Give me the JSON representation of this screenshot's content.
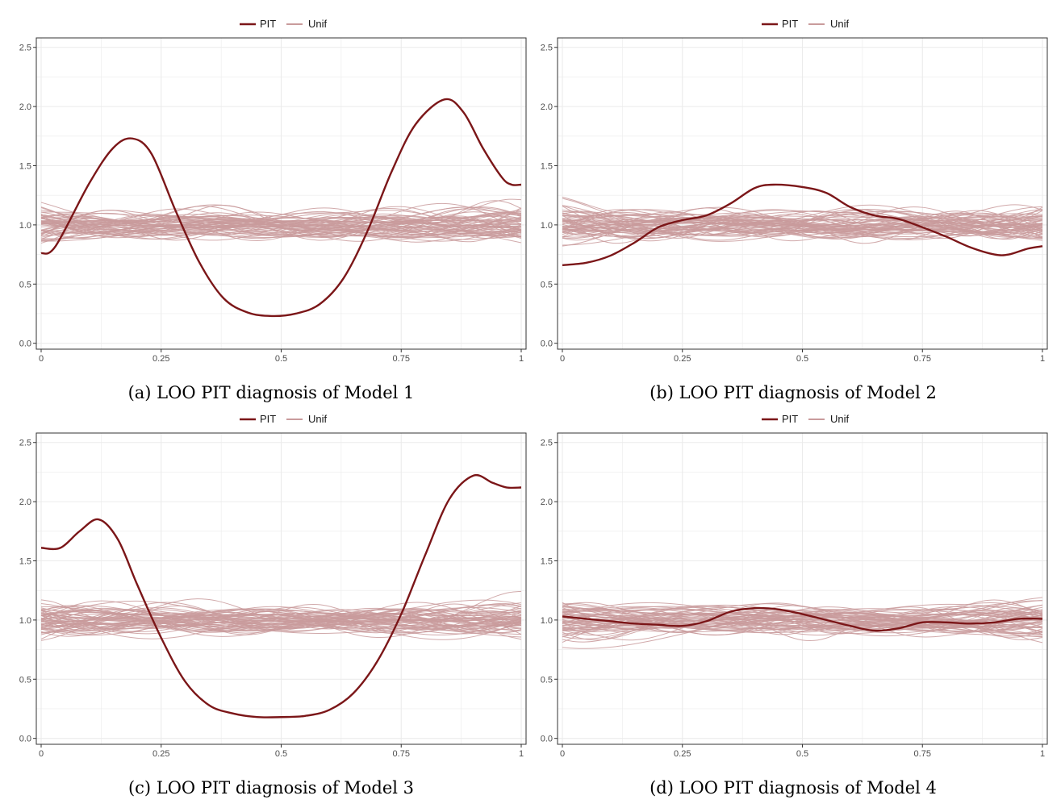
{
  "colors": {
    "pit": "#7b1618",
    "unif": "#c99b9c",
    "grid": "#ebebeb",
    "border": "#333333"
  },
  "chart_data": [
    {
      "type": "line",
      "caption": "(a) LOO PIT diagnosis of Model 1",
      "legend": [
        "PIT",
        "Unif"
      ],
      "legend_position": "top",
      "grid": true,
      "xlim": [
        0,
        1
      ],
      "ylim": [
        -0.05,
        2.58
      ],
      "x_ticks": [
        0,
        0.25,
        0.5,
        0.75,
        1
      ],
      "x_tick_labels": [
        "0",
        "0.25",
        "0.5",
        "0.75",
        "1"
      ],
      "y_ticks": [
        0,
        0.5,
        1,
        1.5,
        2,
        2.5
      ],
      "y_tick_labels": [
        "0.0",
        "0.5",
        "1.0",
        "1.5",
        "2.0",
        "2.5"
      ],
      "unif_curves": 60,
      "unif_seed": 11,
      "series": [
        {
          "name": "PIT",
          "x": [
            0,
            0.03,
            0.1,
            0.15,
            0.19,
            0.23,
            0.28,
            0.33,
            0.38,
            0.43,
            0.48,
            0.53,
            0.58,
            0.63,
            0.68,
            0.73,
            0.78,
            0.84,
            0.88,
            0.92,
            0.96,
            0.98,
            1.0
          ],
          "y": [
            0.76,
            0.82,
            1.35,
            1.65,
            1.73,
            1.6,
            1.12,
            0.68,
            0.38,
            0.26,
            0.23,
            0.25,
            0.33,
            0.55,
            0.95,
            1.45,
            1.85,
            2.06,
            1.95,
            1.65,
            1.4,
            1.34,
            1.34
          ]
        }
      ]
    },
    {
      "type": "line",
      "caption": "(b) LOO PIT diagnosis of Model 2",
      "legend": [
        "PIT",
        "Unif"
      ],
      "legend_position": "top",
      "grid": true,
      "xlim": [
        0,
        1
      ],
      "ylim": [
        -0.05,
        2.58
      ],
      "x_ticks": [
        0,
        0.25,
        0.5,
        0.75,
        1
      ],
      "x_tick_labels": [
        "0",
        "0.25",
        "0.5",
        "0.75",
        "1"
      ],
      "y_ticks": [
        0,
        0.5,
        1,
        1.5,
        2,
        2.5
      ],
      "y_tick_labels": [
        "0.0",
        "0.5",
        "1.0",
        "1.5",
        "2.0",
        "2.5"
      ],
      "unif_curves": 60,
      "unif_seed": 29,
      "series": [
        {
          "name": "PIT",
          "x": [
            0,
            0.05,
            0.1,
            0.15,
            0.2,
            0.25,
            0.3,
            0.35,
            0.4,
            0.44,
            0.5,
            0.55,
            0.6,
            0.65,
            0.7,
            0.75,
            0.8,
            0.85,
            0.9,
            0.93,
            0.97,
            1.0
          ],
          "y": [
            0.66,
            0.68,
            0.74,
            0.85,
            0.98,
            1.04,
            1.08,
            1.18,
            1.31,
            1.34,
            1.32,
            1.27,
            1.15,
            1.08,
            1.05,
            0.98,
            0.9,
            0.81,
            0.75,
            0.75,
            0.8,
            0.82
          ]
        }
      ]
    },
    {
      "type": "line",
      "caption": "(c) LOO PIT diagnosis of Model 3",
      "legend": [
        "PIT",
        "Unif"
      ],
      "legend_position": "top",
      "grid": true,
      "xlim": [
        0,
        1
      ],
      "ylim": [
        -0.05,
        2.58
      ],
      "x_ticks": [
        0,
        0.25,
        0.5,
        0.75,
        1
      ],
      "x_tick_labels": [
        "0",
        "0.25",
        "0.5",
        "0.75",
        "1"
      ],
      "y_ticks": [
        0,
        0.5,
        1,
        1.5,
        2,
        2.5
      ],
      "y_tick_labels": [
        "0.0",
        "0.5",
        "1.0",
        "1.5",
        "2.0",
        "2.5"
      ],
      "unif_curves": 60,
      "unif_seed": 47,
      "series": [
        {
          "name": "PIT",
          "x": [
            0,
            0.04,
            0.08,
            0.12,
            0.16,
            0.2,
            0.25,
            0.3,
            0.35,
            0.4,
            0.45,
            0.5,
            0.55,
            0.6,
            0.65,
            0.7,
            0.75,
            0.8,
            0.85,
            0.9,
            0.94,
            0.97,
            1.0
          ],
          "y": [
            1.61,
            1.61,
            1.75,
            1.85,
            1.68,
            1.3,
            0.85,
            0.48,
            0.28,
            0.21,
            0.18,
            0.18,
            0.19,
            0.24,
            0.38,
            0.65,
            1.05,
            1.55,
            2.02,
            2.22,
            2.16,
            2.12,
            2.12
          ]
        }
      ]
    },
    {
      "type": "line",
      "caption": "(d) LOO PIT diagnosis of Model 4",
      "legend": [
        "PIT",
        "Unif"
      ],
      "legend_position": "top",
      "grid": true,
      "xlim": [
        0,
        1
      ],
      "ylim": [
        -0.05,
        2.58
      ],
      "x_ticks": [
        0,
        0.25,
        0.5,
        0.75,
        1
      ],
      "x_tick_labels": [
        "0",
        "0.25",
        "0.5",
        "0.75",
        "1"
      ],
      "y_ticks": [
        0,
        0.5,
        1,
        1.5,
        2,
        2.5
      ],
      "y_tick_labels": [
        "0.0",
        "0.5",
        "1.0",
        "1.5",
        "2.0",
        "2.5"
      ],
      "unif_curves": 60,
      "unif_seed": 83,
      "series": [
        {
          "name": "PIT",
          "x": [
            0,
            0.05,
            0.1,
            0.15,
            0.2,
            0.25,
            0.3,
            0.35,
            0.4,
            0.45,
            0.5,
            0.55,
            0.6,
            0.65,
            0.7,
            0.75,
            0.8,
            0.85,
            0.9,
            0.95,
            1.0
          ],
          "y": [
            1.03,
            1.01,
            0.99,
            0.97,
            0.96,
            0.95,
            0.99,
            1.07,
            1.1,
            1.09,
            1.05,
            1.0,
            0.95,
            0.91,
            0.93,
            0.98,
            0.98,
            0.97,
            0.98,
            1.01,
            1.01
          ]
        }
      ]
    }
  ]
}
